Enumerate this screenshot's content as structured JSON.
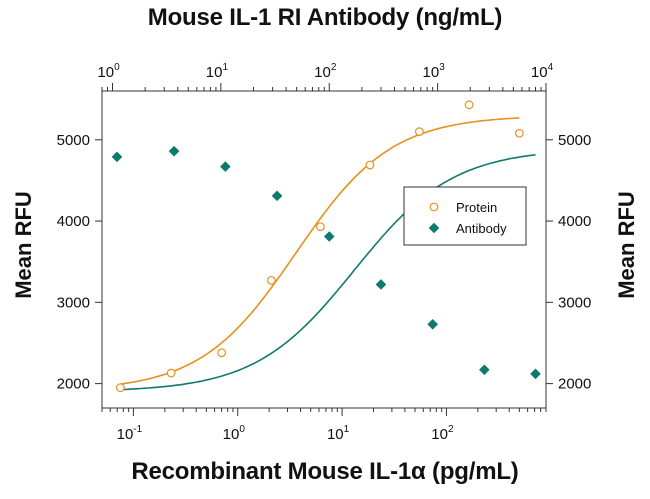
{
  "chart_data": {
    "type": "scatter",
    "top_axis_title": "Mouse IL-1 RI Antibody (ng/mL)",
    "bottom_axis_title": "Recombinant Mouse IL-1α (pg/mL)",
    "ylabel_left": "Mean RFU",
    "ylabel_right": "Mean RFU",
    "ylim": [
      1700,
      5600
    ],
    "yticks": [
      2000,
      3000,
      4000,
      5000
    ],
    "ytick_labels": [
      "2000",
      "3000",
      "4000",
      "5000"
    ],
    "bottom_axis": {
      "scale": "log",
      "range": [
        0.05,
        900
      ],
      "ticks": [
        0.1,
        1,
        10,
        100
      ],
      "tick_labels": [
        {
          "base": "10",
          "exp": "-1"
        },
        {
          "base": "10",
          "exp": "0"
        },
        {
          "base": "10",
          "exp": "1"
        },
        {
          "base": "10",
          "exp": "2"
        }
      ]
    },
    "top_axis": {
      "scale": "log",
      "range": [
        0.8,
        10000
      ],
      "ticks": [
        1,
        10,
        100,
        1000,
        10000
      ],
      "tick_labels": [
        {
          "base": "10",
          "exp": "0"
        },
        {
          "base": "10",
          "exp": "1"
        },
        {
          "base": "10",
          "exp": "2"
        },
        {
          "base": "10",
          "exp": "3"
        },
        {
          "base": "10",
          "exp": "4"
        }
      ]
    },
    "legend": {
      "position": "right-middle",
      "entries": [
        "Protein",
        "Antibody"
      ]
    },
    "grid": false,
    "series": [
      {
        "name": "Protein",
        "axis": "bottom",
        "marker": "open-circle",
        "color": "#E8901E",
        "x": [
          0.075,
          0.23,
          0.7,
          2.1,
          6.2,
          18.5,
          55,
          165,
          500
        ],
        "y": [
          1950,
          2130,
          2380,
          3270,
          3930,
          4690,
          5100,
          5430,
          5080
        ],
        "fit": {
          "bottom": 1910,
          "top": 5300,
          "ec50": 3.6,
          "hill": 0.95
        }
      },
      {
        "name": "Antibody",
        "axis": "top",
        "marker": "filled-diamond",
        "color": "#0E7A6E",
        "x": [
          1.1,
          3.7,
          11,
          33,
          100,
          300,
          900,
          2700,
          8000
        ],
        "y": [
          4790,
          4860,
          4670,
          4310,
          3810,
          3220,
          2730,
          2170,
          2120
        ],
        "fit": {
          "bottom": 1900,
          "top": 4890,
          "ec50": 170,
          "hill": 0.95
        }
      }
    ]
  }
}
